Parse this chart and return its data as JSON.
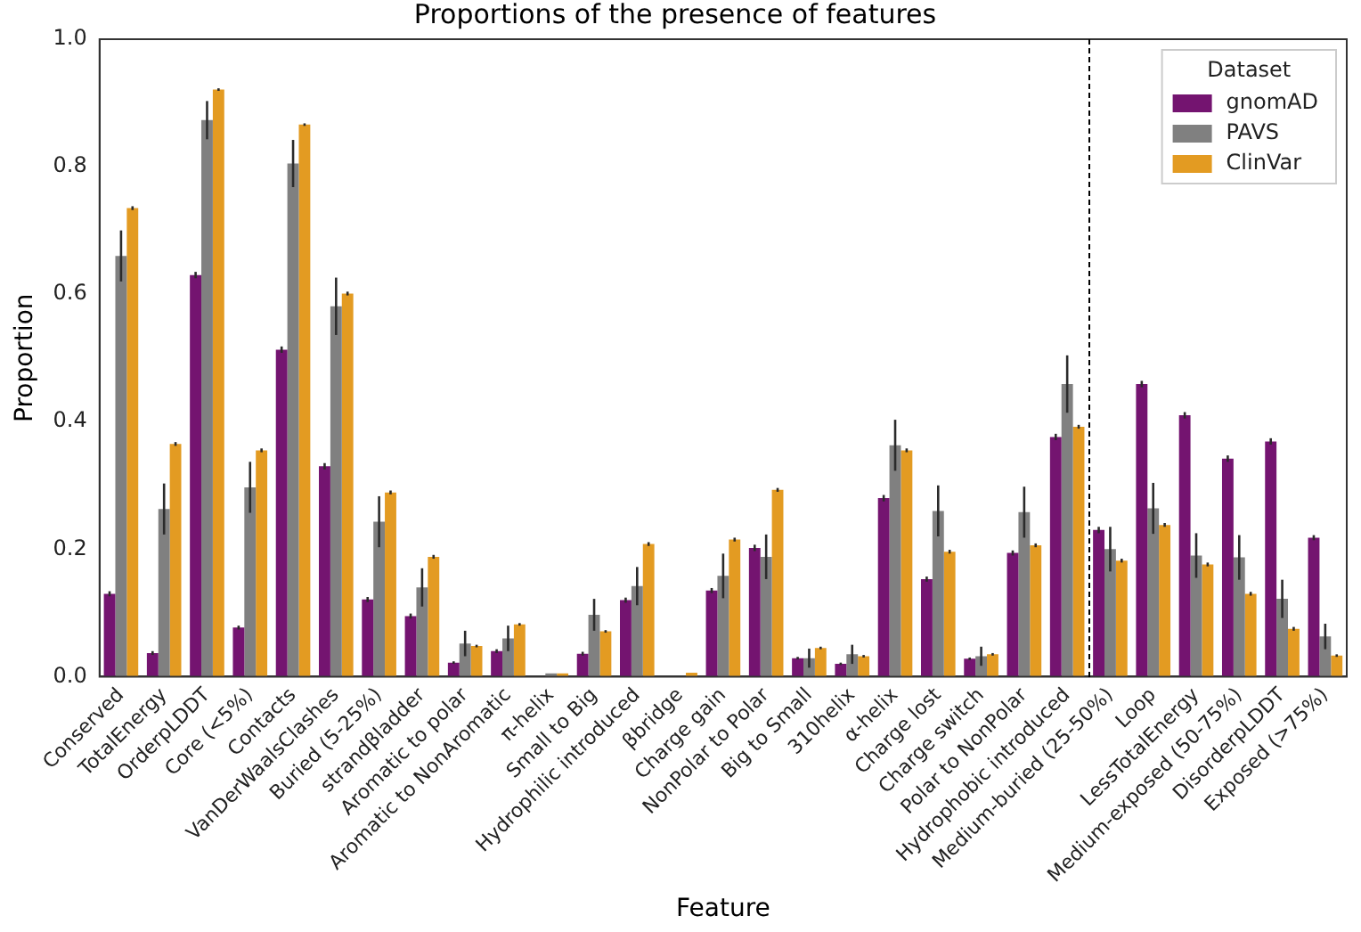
{
  "chart_data": {
    "type": "bar",
    "title": "Proportions of the presence of features",
    "xlabel": "Feature",
    "ylabel": "Proportion",
    "legend_title": "Dataset",
    "legend": "top right",
    "grid": false,
    "categories": [
      "Conserved",
      "TotalEnergy",
      "OrderpLDDT",
      "Core (<5%)",
      "Contacts",
      "VanDerWaalsClashes",
      "Buried (5-25%)",
      "strandβladder",
      "Aromatic to polar",
      "Aromatic to NonAromatic",
      "π-helix",
      "Small to Big",
      "Hydrophilic introduced",
      "βbridge",
      "Charge gain",
      "NonPolar to Polar",
      "Big to Small",
      "310helix",
      "α-helix",
      "Charge lost",
      "Charge switch",
      "Polar to NonPolar",
      "Hydrophobic introduced",
      "Medium-buried (25-50%)",
      "Loop",
      "LessTotalEnergy",
      "Medium-exposed (50-75%)",
      "DisorderpLDDT",
      "Exposed (>75%)"
    ],
    "ylim": [
      0,
      1
    ],
    "yticks": [
      {
        "value": 0,
        "label": "0.0"
      },
      0.2,
      0.4,
      0.6,
      0.8,
      {
        "value": 1,
        "label": "1.0"
      }
    ],
    "series": [
      {
        "name": "gnomAD",
        "color": "#741470",
        "values": [
          0.13,
          0.037,
          0.63,
          0.077,
          0.513,
          0.33,
          0.121,
          0.095,
          0.022,
          0.04,
          null,
          0.036,
          0.12,
          null,
          0.135,
          0.202,
          0.029,
          0.02,
          0.28,
          0.153,
          0.028,
          0.194,
          0.376,
          0.23,
          0.459,
          0.41,
          0.342,
          0.369,
          0.218
        ],
        "errors": [
          0.004,
          0.003,
          0.005,
          0.003,
          0.005,
          0.005,
          0.004,
          0.004,
          0.002,
          0.003,
          null,
          0.003,
          0.004,
          null,
          0.004,
          0.005,
          0.002,
          0.002,
          0.005,
          0.004,
          0.002,
          0.004,
          0.005,
          0.005,
          0.005,
          0.005,
          0.005,
          0.005,
          0.004
        ]
      },
      {
        "name": "PAVS",
        "color": "#808080",
        "values": [
          0.66,
          0.263,
          0.873,
          0.297,
          0.805,
          0.581,
          0.243,
          0.14,
          0.052,
          0.06,
          0.005,
          0.097,
          0.142,
          null,
          0.158,
          0.188,
          0.029,
          0.035,
          0.363,
          0.26,
          0.032,
          0.258,
          0.459,
          0.2,
          0.264,
          0.19,
          0.187,
          0.122,
          0.063
        ],
        "errors": [
          0.04,
          0.04,
          0.03,
          0.04,
          0.037,
          0.045,
          0.04,
          0.03,
          0.02,
          0.02,
          null,
          0.025,
          0.03,
          null,
          0.035,
          0.035,
          0.015,
          0.015,
          0.04,
          0.04,
          0.015,
          0.04,
          0.045,
          0.035,
          0.04,
          0.035,
          0.035,
          0.03,
          0.02
        ]
      },
      {
        "name": "ClinVar",
        "color": "#e39b22",
        "values": [
          0.735,
          0.365,
          0.921,
          0.355,
          0.866,
          0.601,
          0.289,
          0.188,
          0.048,
          0.082,
          0.005,
          0.071,
          0.208,
          0.006,
          0.215,
          0.293,
          0.045,
          0.032,
          0.355,
          0.196,
          0.035,
          0.206,
          0.392,
          0.182,
          0.238,
          0.176,
          0.13,
          0.075,
          0.033
        ],
        "errors": [
          0.003,
          0.003,
          0.002,
          0.003,
          0.002,
          0.003,
          0.003,
          0.003,
          0.002,
          0.002,
          null,
          0.002,
          0.003,
          null,
          0.003,
          0.003,
          0.002,
          0.002,
          0.003,
          0.003,
          0.002,
          0.003,
          0.003,
          0.003,
          0.003,
          0.003,
          0.003,
          0.003,
          0.002
        ]
      }
    ]
  }
}
